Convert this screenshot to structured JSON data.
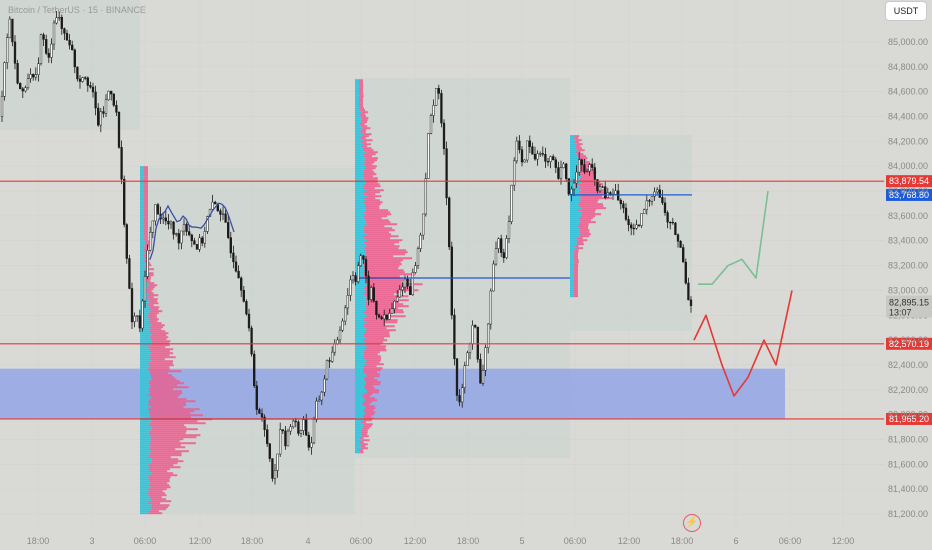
{
  "header": {
    "symbol_text": "Bitcoin / TetherUS · 15 · BINANCE"
  },
  "currency_button": "USDT",
  "price_axis": {
    "ticks": [
      "85,000.00",
      "84,800.00",
      "84,600.00",
      "84,400.00",
      "84,200.00",
      "84,000.00",
      "83,800.00",
      "83,600.00",
      "83,400.00",
      "83,200.00",
      "83,000.00",
      "82,800.00",
      "82,600.00",
      "82,400.00",
      "82,200.00",
      "82,000.00",
      "81,800.00",
      "81,600.00",
      "81,400.00",
      "81,200.00"
    ],
    "current_price": "82,895.15",
    "countdown": "13:07"
  },
  "time_axis": {
    "ticks": [
      "18:00",
      "3",
      "06:00",
      "12:00",
      "18:00",
      "4",
      "06:00",
      "12:00",
      "18:00",
      "5",
      "06:00",
      "12:00",
      "18:00",
      "6",
      "06:00",
      "12:00"
    ]
  },
  "levels": [
    {
      "value": 83879.54,
      "label": "83,879.54",
      "color": "#e53935"
    },
    {
      "value": 83768.8,
      "label": "83,768.80",
      "color": "#1e5bd8"
    },
    {
      "value": 82570.19,
      "label": "82,570.19",
      "color": "#e53935"
    },
    {
      "value": 81965.2,
      "label": "81,965.20",
      "color": "#e53935"
    }
  ],
  "colors": {
    "candle": "#1a1a1a",
    "profile_pink": "#ec5f8f",
    "profile_cyan": "#3bc4d9",
    "zone": "#8fa3e8",
    "bull_path": "#7bbf95",
    "bear_path": "#e53935",
    "ma": "#3b4fa5"
  },
  "chart_data": {
    "type": "candlestick",
    "symbol": "Bitcoin / TetherUS",
    "interval": "15",
    "exchange": "BINANCE",
    "ylim": [
      81150,
      85250
    ],
    "x_ticks": [
      "18:00",
      "3",
      "06:00",
      "12:00",
      "18:00",
      "4",
      "06:00",
      "12:00",
      "18:00",
      "5",
      "06:00",
      "12:00",
      "18:00",
      "6",
      "06:00",
      "12:00"
    ],
    "last_price": 82895.15,
    "horizontal_levels": [
      83879.54,
      83768.8,
      82570.19,
      81965.2
    ],
    "demand_zone": [
      81965.2,
      82370
    ],
    "price_path": [
      [
        0,
        84400
      ],
      [
        5,
        84900
      ],
      [
        10,
        85200
      ],
      [
        15,
        84800
      ],
      [
        22,
        84550
      ],
      [
        28,
        84750
      ],
      [
        35,
        84650
      ],
      [
        42,
        85100
      ],
      [
        48,
        84800
      ],
      [
        55,
        85250
      ],
      [
        62,
        85100
      ],
      [
        70,
        85000
      ],
      [
        78,
        84700
      ],
      [
        85,
        84750
      ],
      [
        92,
        84600
      ],
      [
        98,
        84350
      ],
      [
        104,
        84450
      ],
      [
        110,
        84650
      ],
      [
        116,
        84450
      ],
      [
        120,
        84050
      ],
      [
        124,
        83600
      ],
      [
        128,
        83100
      ],
      [
        132,
        82750
      ],
      [
        136,
        82800
      ],
      [
        140,
        82700
      ],
      [
        144,
        83000
      ],
      [
        148,
        83400
      ],
      [
        152,
        83500
      ],
      [
        156,
        83700
      ],
      [
        160,
        83600
      ],
      [
        166,
        83550
      ],
      [
        172,
        83500
      ],
      [
        178,
        83400
      ],
      [
        184,
        83550
      ],
      [
        190,
        83450
      ],
      [
        196,
        83350
      ],
      [
        202,
        83400
      ],
      [
        208,
        83600
      ],
      [
        214,
        83700
      ],
      [
        220,
        83650
      ],
      [
        226,
        83500
      ],
      [
        232,
        83300
      ],
      [
        238,
        83150
      ],
      [
        244,
        82950
      ],
      [
        250,
        82600
      ],
      [
        256,
        82100
      ],
      [
        262,
        81950
      ],
      [
        268,
        81750
      ],
      [
        274,
        81450
      ],
      [
        280,
        81900
      ],
      [
        286,
        81750
      ],
      [
        292,
        82000
      ],
      [
        298,
        81850
      ],
      [
        304,
        81950
      ],
      [
        310,
        81700
      ],
      [
        316,
        82050
      ],
      [
        322,
        82200
      ],
      [
        328,
        82450
      ],
      [
        334,
        82500
      ],
      [
        340,
        82700
      ],
      [
        346,
        82900
      ],
      [
        352,
        83150
      ],
      [
        356,
        83100
      ],
      [
        360,
        83300
      ],
      [
        364,
        83200
      ],
      [
        368,
        82950
      ],
      [
        372,
        83000
      ],
      [
        376,
        82800
      ],
      [
        380,
        82800
      ],
      [
        386,
        82750
      ],
      [
        392,
        82850
      ],
      [
        398,
        82950
      ],
      [
        404,
        83100
      ],
      [
        410,
        83000
      ],
      [
        416,
        83250
      ],
      [
        420,
        83400
      ],
      [
        424,
        83700
      ],
      [
        428,
        84200
      ],
      [
        432,
        84450
      ],
      [
        436,
        84650
      ],
      [
        440,
        84500
      ],
      [
        444,
        84100
      ],
      [
        448,
        83600
      ],
      [
        452,
        82800
      ],
      [
        456,
        82200
      ],
      [
        460,
        82050
      ],
      [
        464,
        82350
      ],
      [
        468,
        82500
      ],
      [
        474,
        82800
      ],
      [
        480,
        82200
      ],
      [
        486,
        82550
      ],
      [
        492,
        83100
      ],
      [
        498,
        83400
      ],
      [
        504,
        83300
      ],
      [
        510,
        83650
      ],
      [
        516,
        84250
      ],
      [
        522,
        84000
      ],
      [
        528,
        84200
      ],
      [
        534,
        84050
      ],
      [
        540,
        84150
      ],
      [
        546,
        84000
      ],
      [
        552,
        84050
      ],
      [
        558,
        83900
      ],
      [
        564,
        84000
      ],
      [
        570,
        83750
      ],
      [
        574,
        83900
      ],
      [
        578,
        84050
      ],
      [
        584,
        83950
      ],
      [
        590,
        84000
      ],
      [
        596,
        83850
      ],
      [
        602,
        83800
      ],
      [
        608,
        83750
      ],
      [
        614,
        83800
      ],
      [
        620,
        83700
      ],
      [
        626,
        83600
      ],
      [
        632,
        83450
      ],
      [
        638,
        83500
      ],
      [
        644,
        83650
      ],
      [
        650,
        83750
      ],
      [
        656,
        83850
      ],
      [
        662,
        83700
      ],
      [
        668,
        83550
      ],
      [
        674,
        83500
      ],
      [
        680,
        83350
      ],
      [
        684,
        83200
      ],
      [
        688,
        82950
      ],
      [
        692,
        82900
      ]
    ],
    "volume_profiles": [
      {
        "start_x": 140,
        "end_x": 355,
        "ylim": [
          81200,
          84000
        ],
        "poc": 81965
      },
      {
        "start_x": 355,
        "end_x": 570,
        "ylim": [
          81700,
          84700
        ],
        "poc": 83100
      },
      {
        "start_x": 570,
        "end_x": 692,
        "ylim": [
          82950,
          84250
        ],
        "poc": 83768.8
      }
    ],
    "projections": [
      {
        "scenario": "bullish",
        "path": [
          [
            698,
            83050
          ],
          [
            712,
            83050
          ],
          [
            728,
            83200
          ],
          [
            742,
            83250
          ],
          [
            756,
            83100
          ],
          [
            768,
            83800
          ]
        ]
      },
      {
        "scenario": "bearish",
        "path": [
          [
            694,
            82600
          ],
          [
            706,
            82800
          ],
          [
            722,
            82400
          ],
          [
            734,
            82150
          ],
          [
            748,
            82300
          ],
          [
            764,
            82600
          ],
          [
            776,
            82400
          ],
          [
            792,
            83000
          ]
        ]
      }
    ]
  }
}
